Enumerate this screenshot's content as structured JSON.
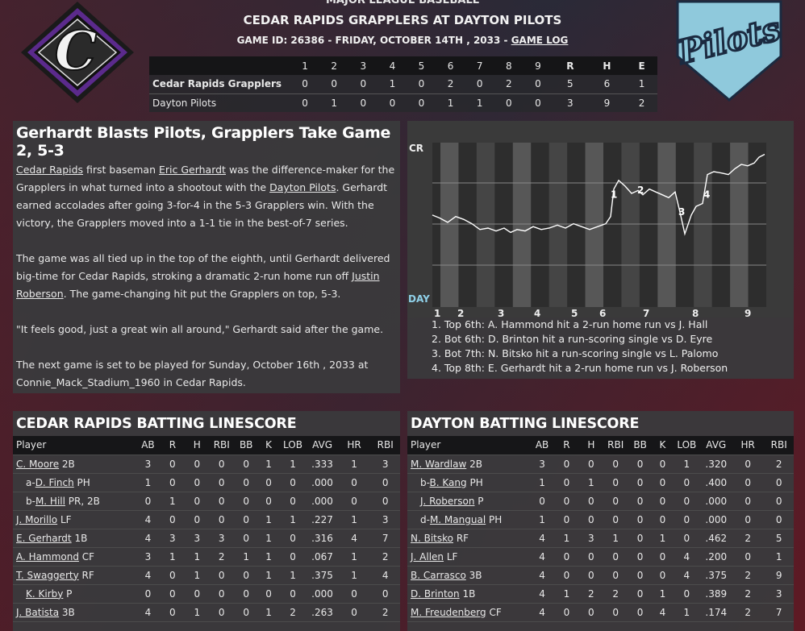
{
  "header": {
    "league": "MAJOR LEAGUE BASEBALL",
    "title": "CEDAR RAPIDS GRAPPLERS AT DAYTON PILOTS",
    "game_info": "GAME ID: 26386 - FRIDAY, OCTOBER 14TH , 2033 - ",
    "game_log_link": "GAME LOG"
  },
  "logos": {
    "home_text": "Pilots",
    "away_letter": "C"
  },
  "linescore": {
    "columns": [
      "1",
      "2",
      "3",
      "4",
      "5",
      "6",
      "7",
      "8",
      "9",
      "R",
      "H",
      "E"
    ],
    "rows": [
      {
        "team": "Cedar Rapids Grapplers",
        "values": [
          "0",
          "0",
          "0",
          "1",
          "0",
          "2",
          "0",
          "2",
          "0",
          "5",
          "6",
          "1"
        ]
      },
      {
        "team": "Dayton Pilots",
        "values": [
          "0",
          "1",
          "0",
          "0",
          "0",
          "1",
          "1",
          "0",
          "0",
          "3",
          "9",
          "2"
        ]
      }
    ]
  },
  "story": {
    "headline": "Gerhardt Blasts Pilots, Grapplers Take Game 2, 5-3",
    "p1": [
      {
        "t": "Cedar Rapids",
        "u": true
      },
      {
        "t": " first baseman "
      },
      {
        "t": "Eric Gerhardt",
        "u": true
      },
      {
        "t": " was the difference-maker for the Grapplers in what turned into a shootout with the "
      },
      {
        "t": "Dayton Pilots",
        "u": true
      },
      {
        "t": ". Gerhardt earned accolades after going 3-for-4 in the 5-3 Grapplers win. With the victory, the Grapplers moved into a 1-1 tie in the best-of-7 series."
      }
    ],
    "p2": [
      {
        "t": "The game was all tied up in the top of the eighth, until Gerhardt delivered big-time for Cedar Rapids, stroking a dramatic 2-run home run off "
      },
      {
        "t": "Justin Roberson",
        "u": true
      },
      {
        "t": ". The game-changing hit put the Grapplers on top, 5-3."
      }
    ],
    "p3": "\"It feels good, just a great win all around,\" Gerhardt said after the game.",
    "p4": "The next game is set to be played for Sunday, October 16th , 2033 at Connie_Mack_Stadium_1960 in Cedar Rapids."
  },
  "win_prob": {
    "top_label": "CR",
    "bottom_label": "DAY",
    "innings": [
      "1",
      "2",
      "3",
      "4",
      "5",
      "6",
      "7",
      "8",
      "9"
    ],
    "markers": [
      "1",
      "2",
      "3",
      "4"
    ],
    "notes": [
      "1. Top 6th: A. Hammond hit a 2-run home run vs J. Hall",
      "2. Bot 6th: D. Brinton hit a run-scoring single vs D. Eyre",
      "3. Bot 7th: N. Bitsko hit a run-scoring single vs L. Palomo",
      "4. Top 8th: E. Gerhardt hit a 2-run home run vs J. Roberson"
    ],
    "colors": {
      "away_line": "#ffffff",
      "home_line": "#8fd0e8",
      "band": "#6a6a6a"
    }
  },
  "batting_columns": [
    "Player",
    "AB",
    "R",
    "H",
    "RBI",
    "BB",
    "K",
    "LOB",
    "AVG",
    "HR",
    "RBI"
  ],
  "cedar_batting": {
    "title": "CEDAR RAPIDS BATTING LINESCORE",
    "rows": [
      {
        "prefix": "",
        "name": "C. Moore",
        "pos": " 2B",
        "sub": false,
        "stats": [
          "3",
          "0",
          "0",
          "0",
          "0",
          "1",
          "1",
          ".333",
          "1",
          "3"
        ]
      },
      {
        "prefix": "a-",
        "name": "D. Finch",
        "pos": " PH",
        "sub": true,
        "stats": [
          "1",
          "0",
          "0",
          "0",
          "0",
          "0",
          "0",
          ".000",
          "0",
          "0"
        ]
      },
      {
        "prefix": "b-",
        "name": "M. Hill",
        "pos": " PR, 2B",
        "sub": true,
        "stats": [
          "0",
          "1",
          "0",
          "0",
          "0",
          "0",
          "0",
          ".000",
          "0",
          "0"
        ]
      },
      {
        "prefix": "",
        "name": "J. Morillo",
        "pos": " LF",
        "sub": false,
        "stats": [
          "4",
          "0",
          "0",
          "0",
          "0",
          "1",
          "1",
          ".227",
          "1",
          "3"
        ]
      },
      {
        "prefix": "",
        "name": "E. Gerhardt",
        "pos": " 1B",
        "sub": false,
        "stats": [
          "4",
          "3",
          "3",
          "3",
          "0",
          "1",
          "0",
          ".316",
          "4",
          "7"
        ]
      },
      {
        "prefix": "",
        "name": "A. Hammond",
        "pos": " CF",
        "sub": false,
        "stats": [
          "3",
          "1",
          "1",
          "2",
          "1",
          "1",
          "0",
          ".067",
          "1",
          "2"
        ]
      },
      {
        "prefix": "",
        "name": "T. Swaggerty",
        "pos": " RF",
        "sub": false,
        "stats": [
          "4",
          "0",
          "1",
          "0",
          "0",
          "1",
          "1",
          ".375",
          "1",
          "4"
        ]
      },
      {
        "prefix": "",
        "name": "K. Kirby",
        "pos": " P",
        "sub": true,
        "stats": [
          "0",
          "0",
          "0",
          "0",
          "0",
          "0",
          "0",
          ".000",
          "0",
          "0"
        ]
      },
      {
        "prefix": "",
        "name": "J. Batista",
        "pos": " 3B",
        "sub": false,
        "stats": [
          "4",
          "0",
          "1",
          "0",
          "0",
          "1",
          "2",
          ".263",
          "0",
          "2"
        ]
      }
    ]
  },
  "dayton_batting": {
    "title": "DAYTON BATTING LINESCORE",
    "rows": [
      {
        "prefix": "",
        "name": "M. Wardlaw",
        "pos": " 2B",
        "sub": false,
        "stats": [
          "3",
          "0",
          "0",
          "0",
          "0",
          "0",
          "1",
          ".320",
          "0",
          "2"
        ]
      },
      {
        "prefix": "b-",
        "name": "B. Kang",
        "pos": " PH",
        "sub": true,
        "stats": [
          "1",
          "0",
          "1",
          "0",
          "0",
          "0",
          "0",
          ".400",
          "0",
          "0"
        ]
      },
      {
        "prefix": "",
        "name": "J. Roberson",
        "pos": " P",
        "sub": true,
        "stats": [
          "0",
          "0",
          "0",
          "0",
          "0",
          "0",
          "0",
          ".000",
          "0",
          "0"
        ]
      },
      {
        "prefix": "d-",
        "name": "M. Mangual",
        "pos": " PH",
        "sub": true,
        "stats": [
          "1",
          "0",
          "0",
          "0",
          "0",
          "0",
          "0",
          ".000",
          "0",
          "0"
        ]
      },
      {
        "prefix": "",
        "name": "N. Bitsko",
        "pos": " RF",
        "sub": false,
        "stats": [
          "4",
          "1",
          "3",
          "1",
          "0",
          "1",
          "0",
          ".462",
          "2",
          "5"
        ]
      },
      {
        "prefix": "",
        "name": "J. Allen",
        "pos": " LF",
        "sub": false,
        "stats": [
          "4",
          "0",
          "0",
          "0",
          "0",
          "0",
          "4",
          ".200",
          "0",
          "1"
        ]
      },
      {
        "prefix": "",
        "name": "B. Carrasco",
        "pos": " 3B",
        "sub": false,
        "stats": [
          "4",
          "0",
          "0",
          "0",
          "0",
          "0",
          "4",
          ".375",
          "2",
          "9"
        ]
      },
      {
        "prefix": "",
        "name": "D. Brinton",
        "pos": " 1B",
        "sub": false,
        "stats": [
          "4",
          "1",
          "2",
          "2",
          "0",
          "1",
          "0",
          ".389",
          "2",
          "3"
        ]
      },
      {
        "prefix": "",
        "name": "M. Freudenberg",
        "pos": " CF",
        "sub": false,
        "stats": [
          "4",
          "0",
          "0",
          "0",
          "0",
          "4",
          "1",
          ".174",
          "2",
          "7"
        ]
      }
    ]
  }
}
